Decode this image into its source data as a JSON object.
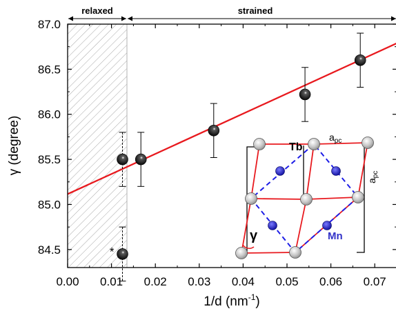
{
  "chart_data": {
    "type": "scatter",
    "xlabel": "1/d (nm",
    "xlabel_sup": "-1",
    "xlabel_close": ")",
    "ylabel": "γ (degree)",
    "xlim": [
      0.0,
      0.075
    ],
    "ylim": [
      84.3,
      87.0
    ],
    "x_ticks": [
      "0.00",
      "0.01",
      "0.02",
      "0.03",
      "0.04",
      "0.05",
      "0.06",
      "0.07"
    ],
    "y_ticks": [
      "84.5",
      "85.0",
      "85.5",
      "86.0",
      "86.5",
      "87.0"
    ],
    "regions": [
      {
        "label": "relaxed",
        "x_range": [
          0.0,
          0.0133
        ],
        "hatched": true
      },
      {
        "label": "strained",
        "x_range": [
          0.0133,
          0.075
        ],
        "hatched": false
      }
    ],
    "points": [
      {
        "x": 0.0125,
        "y": 85.5,
        "err": 0.3
      },
      {
        "x": 0.0125,
        "y": 84.45,
        "err": 0.3,
        "annotation": "*"
      },
      {
        "x": 0.0167,
        "y": 85.5,
        "err": 0.3
      },
      {
        "x": 0.0333,
        "y": 85.82,
        "err": 0.3
      },
      {
        "x": 0.0541,
        "y": 86.22,
        "err": 0.3
      },
      {
        "x": 0.0667,
        "y": 86.6,
        "err": 0.3
      }
    ],
    "fit_line": {
      "intercept": 85.115,
      "slope": 22.3,
      "color": "#e8191e"
    },
    "inset": {
      "tb_label": "Tb",
      "mn_label": "Mn",
      "gamma_label": "γ",
      "apc_label": "a",
      "apc_sub": "pc",
      "colors": {
        "cell": "#e8191e",
        "mn": "#1414c8",
        "mn_label": "#3232c8",
        "tb": "#c8c8c8",
        "diag": "#1e1ee6"
      }
    }
  }
}
